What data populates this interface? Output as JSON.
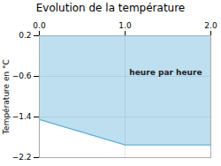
{
  "chart_data": {
    "type": "area",
    "title": "Evolution de la température",
    "ylabel": "Température en °C",
    "x": [
      0,
      1,
      2
    ],
    "values": [
      -1.45,
      -1.95,
      -1.95
    ],
    "y_top": 0.2,
    "color": "#5bafd6",
    "xlim": [
      0,
      2
    ],
    "xticks": [
      0,
      1,
      2
    ],
    "ylim": [
      -2.2,
      0.2
    ],
    "yticks": [
      0.2,
      -0.6,
      -1.4,
      -2.2
    ],
    "grid": true,
    "annotations": [
      {
        "text": "heure par heure",
        "x": 1.05,
        "y": -0.52
      }
    ]
  }
}
